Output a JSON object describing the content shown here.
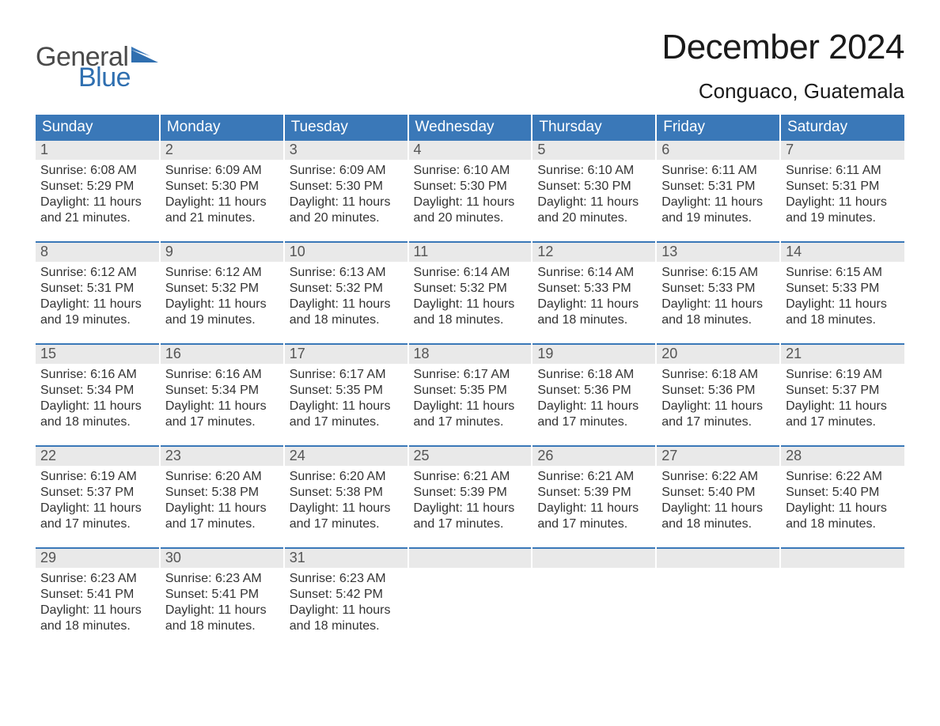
{
  "brand": {
    "word1": "General",
    "word2": "Blue",
    "text_color": "#4a4a4a",
    "accent_color": "#2f6fb0"
  },
  "title": "December 2024",
  "location": "Conguaco, Guatemala",
  "colors": {
    "header_bg": "#3a78b8",
    "header_text": "#ffffff",
    "daynum_bg": "#e9e9e9",
    "daynum_text": "#555555",
    "row_border": "#3a78b8",
    "body_text": "#333333",
    "page_bg": "#ffffff"
  },
  "fonts": {
    "title_size": 44,
    "location_size": 26,
    "header_size": 19,
    "daynum_size": 18,
    "cell_size": 16
  },
  "weekdays": [
    "Sunday",
    "Monday",
    "Tuesday",
    "Wednesday",
    "Thursday",
    "Friday",
    "Saturday"
  ],
  "weeks": [
    [
      {
        "day": "1",
        "sunrise": "6:08 AM",
        "sunset": "5:29 PM",
        "daylight_l1": "Daylight: 11 hours",
        "daylight_l2": "and 21 minutes."
      },
      {
        "day": "2",
        "sunrise": "6:09 AM",
        "sunset": "5:30 PM",
        "daylight_l1": "Daylight: 11 hours",
        "daylight_l2": "and 21 minutes."
      },
      {
        "day": "3",
        "sunrise": "6:09 AM",
        "sunset": "5:30 PM",
        "daylight_l1": "Daylight: 11 hours",
        "daylight_l2": "and 20 minutes."
      },
      {
        "day": "4",
        "sunrise": "6:10 AM",
        "sunset": "5:30 PM",
        "daylight_l1": "Daylight: 11 hours",
        "daylight_l2": "and 20 minutes."
      },
      {
        "day": "5",
        "sunrise": "6:10 AM",
        "sunset": "5:30 PM",
        "daylight_l1": "Daylight: 11 hours",
        "daylight_l2": "and 20 minutes."
      },
      {
        "day": "6",
        "sunrise": "6:11 AM",
        "sunset": "5:31 PM",
        "daylight_l1": "Daylight: 11 hours",
        "daylight_l2": "and 19 minutes."
      },
      {
        "day": "7",
        "sunrise": "6:11 AM",
        "sunset": "5:31 PM",
        "daylight_l1": "Daylight: 11 hours",
        "daylight_l2": "and 19 minutes."
      }
    ],
    [
      {
        "day": "8",
        "sunrise": "6:12 AM",
        "sunset": "5:31 PM",
        "daylight_l1": "Daylight: 11 hours",
        "daylight_l2": "and 19 minutes."
      },
      {
        "day": "9",
        "sunrise": "6:12 AM",
        "sunset": "5:32 PM",
        "daylight_l1": "Daylight: 11 hours",
        "daylight_l2": "and 19 minutes."
      },
      {
        "day": "10",
        "sunrise": "6:13 AM",
        "sunset": "5:32 PM",
        "daylight_l1": "Daylight: 11 hours",
        "daylight_l2": "and 18 minutes."
      },
      {
        "day": "11",
        "sunrise": "6:14 AM",
        "sunset": "5:32 PM",
        "daylight_l1": "Daylight: 11 hours",
        "daylight_l2": "and 18 minutes."
      },
      {
        "day": "12",
        "sunrise": "6:14 AM",
        "sunset": "5:33 PM",
        "daylight_l1": "Daylight: 11 hours",
        "daylight_l2": "and 18 minutes."
      },
      {
        "day": "13",
        "sunrise": "6:15 AM",
        "sunset": "5:33 PM",
        "daylight_l1": "Daylight: 11 hours",
        "daylight_l2": "and 18 minutes."
      },
      {
        "day": "14",
        "sunrise": "6:15 AM",
        "sunset": "5:33 PM",
        "daylight_l1": "Daylight: 11 hours",
        "daylight_l2": "and 18 minutes."
      }
    ],
    [
      {
        "day": "15",
        "sunrise": "6:16 AM",
        "sunset": "5:34 PM",
        "daylight_l1": "Daylight: 11 hours",
        "daylight_l2": "and 18 minutes."
      },
      {
        "day": "16",
        "sunrise": "6:16 AM",
        "sunset": "5:34 PM",
        "daylight_l1": "Daylight: 11 hours",
        "daylight_l2": "and 17 minutes."
      },
      {
        "day": "17",
        "sunrise": "6:17 AM",
        "sunset": "5:35 PM",
        "daylight_l1": "Daylight: 11 hours",
        "daylight_l2": "and 17 minutes."
      },
      {
        "day": "18",
        "sunrise": "6:17 AM",
        "sunset": "5:35 PM",
        "daylight_l1": "Daylight: 11 hours",
        "daylight_l2": "and 17 minutes."
      },
      {
        "day": "19",
        "sunrise": "6:18 AM",
        "sunset": "5:36 PM",
        "daylight_l1": "Daylight: 11 hours",
        "daylight_l2": "and 17 minutes."
      },
      {
        "day": "20",
        "sunrise": "6:18 AM",
        "sunset": "5:36 PM",
        "daylight_l1": "Daylight: 11 hours",
        "daylight_l2": "and 17 minutes."
      },
      {
        "day": "21",
        "sunrise": "6:19 AM",
        "sunset": "5:37 PM",
        "daylight_l1": "Daylight: 11 hours",
        "daylight_l2": "and 17 minutes."
      }
    ],
    [
      {
        "day": "22",
        "sunrise": "6:19 AM",
        "sunset": "5:37 PM",
        "daylight_l1": "Daylight: 11 hours",
        "daylight_l2": "and 17 minutes."
      },
      {
        "day": "23",
        "sunrise": "6:20 AM",
        "sunset": "5:38 PM",
        "daylight_l1": "Daylight: 11 hours",
        "daylight_l2": "and 17 minutes."
      },
      {
        "day": "24",
        "sunrise": "6:20 AM",
        "sunset": "5:38 PM",
        "daylight_l1": "Daylight: 11 hours",
        "daylight_l2": "and 17 minutes."
      },
      {
        "day": "25",
        "sunrise": "6:21 AM",
        "sunset": "5:39 PM",
        "daylight_l1": "Daylight: 11 hours",
        "daylight_l2": "and 17 minutes."
      },
      {
        "day": "26",
        "sunrise": "6:21 AM",
        "sunset": "5:39 PM",
        "daylight_l1": "Daylight: 11 hours",
        "daylight_l2": "and 17 minutes."
      },
      {
        "day": "27",
        "sunrise": "6:22 AM",
        "sunset": "5:40 PM",
        "daylight_l1": "Daylight: 11 hours",
        "daylight_l2": "and 18 minutes."
      },
      {
        "day": "28",
        "sunrise": "6:22 AM",
        "sunset": "5:40 PM",
        "daylight_l1": "Daylight: 11 hours",
        "daylight_l2": "and 18 minutes."
      }
    ],
    [
      {
        "day": "29",
        "sunrise": "6:23 AM",
        "sunset": "5:41 PM",
        "daylight_l1": "Daylight: 11 hours",
        "daylight_l2": "and 18 minutes."
      },
      {
        "day": "30",
        "sunrise": "6:23 AM",
        "sunset": "5:41 PM",
        "daylight_l1": "Daylight: 11 hours",
        "daylight_l2": "and 18 minutes."
      },
      {
        "day": "31",
        "sunrise": "6:23 AM",
        "sunset": "5:42 PM",
        "daylight_l1": "Daylight: 11 hours",
        "daylight_l2": "and 18 minutes."
      },
      null,
      null,
      null,
      null
    ]
  ],
  "labels": {
    "sunrise_prefix": "Sunrise: ",
    "sunset_prefix": "Sunset: "
  }
}
